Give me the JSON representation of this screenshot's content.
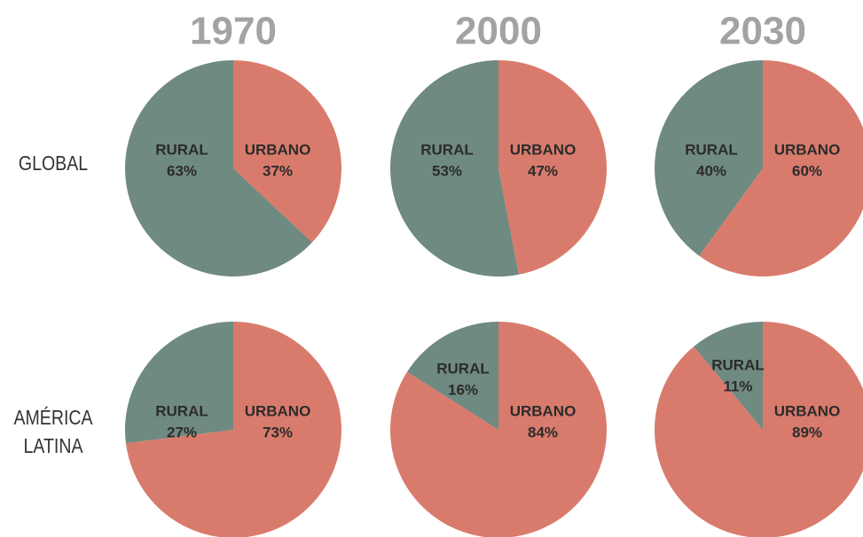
{
  "columns": [
    "1970",
    "2000",
    "2030"
  ],
  "rows": [
    "GLOBAL",
    "AMÉRICA LATINA"
  ],
  "chart_data": [
    {
      "type": "pie",
      "categories": [
        "URBANO",
        "RURAL"
      ],
      "values": [
        37,
        63
      ],
      "value_labels": [
        "37%",
        "63%"
      ],
      "colors": [
        "#d97b6c",
        "#6f8a80"
      ]
    },
    {
      "type": "pie",
      "categories": [
        "URBANO",
        "RURAL"
      ],
      "values": [
        47,
        53
      ],
      "value_labels": [
        "47%",
        "53%"
      ],
      "colors": [
        "#d97b6c",
        "#6f8a80"
      ]
    },
    {
      "type": "pie",
      "categories": [
        "URBANO",
        "RURAL"
      ],
      "values": [
        60,
        40
      ],
      "value_labels": [
        "60%",
        "40%"
      ],
      "colors": [
        "#d97b6c",
        "#6f8a80"
      ]
    },
    {
      "type": "pie",
      "categories": [
        "URBANO",
        "RURAL"
      ],
      "values": [
        73,
        27
      ],
      "value_labels": [
        "73%",
        "27%"
      ],
      "colors": [
        "#d97b6c",
        "#6f8a80"
      ]
    },
    {
      "type": "pie",
      "categories": [
        "URBANO",
        "RURAL"
      ],
      "values": [
        84,
        16
      ],
      "value_labels": [
        "84%",
        "16%"
      ],
      "colors": [
        "#d97b6c",
        "#6f8a80"
      ]
    },
    {
      "type": "pie",
      "categories": [
        "URBANO",
        "RURAL"
      ],
      "values": [
        89,
        11
      ],
      "value_labels": [
        "89%",
        "11%"
      ],
      "colors": [
        "#d97b6c",
        "#6f8a80"
      ]
    }
  ]
}
